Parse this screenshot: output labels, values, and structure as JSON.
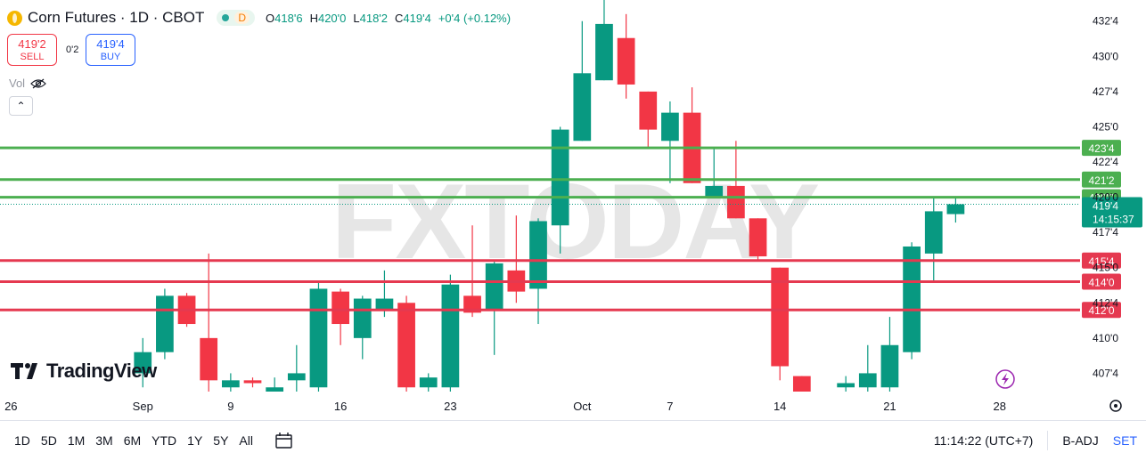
{
  "header": {
    "symbol": "Corn Futures · 1D · CBOT",
    "interval_badge": "D",
    "open_label": "O",
    "open": "418'6",
    "high_label": "H",
    "high": "420'0",
    "low_label": "L",
    "low": "418'2",
    "close_label": "C",
    "close": "419'4",
    "change": "+0'4 (+0.12%)"
  },
  "trade": {
    "sell_price": "419'2",
    "sell_label": "SELL",
    "spread": "0'2",
    "buy_price": "419'4",
    "buy_label": "BUY"
  },
  "volume_label": "Vol",
  "watermark": "FXTODAY",
  "brand": "TradingView",
  "bottom": {
    "ranges": [
      "1D",
      "5D",
      "1M",
      "3M",
      "6M",
      "YTD",
      "1Y",
      "5Y",
      "All"
    ],
    "clock": "11:14:22 (UTC+7)",
    "adj": "B-ADJ",
    "set": "SET"
  },
  "colors": {
    "up": "#089981",
    "down": "#f23645",
    "resistance": "#4caf50",
    "support": "#e53950"
  },
  "chart_data": {
    "type": "candlestick",
    "title": "Corn Futures · 1D · CBOT",
    "y_ticks": [
      407.5,
      410.0,
      412.5,
      415.0,
      417.5,
      420.0,
      422.5,
      425.0,
      427.5,
      430.0,
      432.5
    ],
    "y_tick_labels": [
      "407'4",
      "410'0",
      "412'4",
      "415'0",
      "417'4",
      "420'0",
      "422'4",
      "425'0",
      "427'4",
      "430'0",
      "432'4"
    ],
    "ylim": [
      406.2,
      434.0
    ],
    "x_tick_labels": [
      "26",
      "Sep",
      "9",
      "16",
      "23",
      "Oct",
      "7",
      "14",
      "21",
      "28"
    ],
    "x_tick_slots": [
      -1,
      5,
      9,
      14,
      19,
      25,
      29,
      34,
      39,
      44
    ],
    "xlim": [
      -1.5,
      47.5
    ],
    "horizontal_lines": [
      {
        "value": 423.5,
        "label": "423'4",
        "kind": "resistance"
      },
      {
        "value": 421.25,
        "label": "421'2",
        "kind": "resistance"
      },
      {
        "value": 420.0,
        "label": "420'0",
        "kind": "resistance"
      },
      {
        "value": 415.5,
        "label": "415'4",
        "kind": "support"
      },
      {
        "value": 414.0,
        "label": "414'0",
        "kind": "support"
      },
      {
        "value": 412.0,
        "label": "412'0",
        "kind": "support"
      }
    ],
    "last_price": {
      "value": 419.5,
      "label": "419'4",
      "countdown": "14:15:37"
    },
    "candles": [
      {
        "slot": 5,
        "o": 407.5,
        "h": 410.0,
        "l": 406.5,
        "c": 409.0
      },
      {
        "slot": 6,
        "o": 409.0,
        "h": 413.5,
        "l": 408.5,
        "c": 413.0
      },
      {
        "slot": 7,
        "o": 413.0,
        "h": 413.2,
        "l": 410.8,
        "c": 411.0
      },
      {
        "slot": 8,
        "o": 410.0,
        "h": 416.0,
        "l": 406.0,
        "c": 407.0
      },
      {
        "slot": 9,
        "o": 406.5,
        "h": 407.5,
        "l": 406.0,
        "c": 407.0
      },
      {
        "slot": 10,
        "o": 407.0,
        "h": 407.2,
        "l": 406.5,
        "c": 406.8
      },
      {
        "slot": 11,
        "o": 406.0,
        "h": 407.2,
        "l": 406.0,
        "c": 406.5
      },
      {
        "slot": 12,
        "o": 407.0,
        "h": 409.5,
        "l": 406.0,
        "c": 407.5
      },
      {
        "slot": 13,
        "o": 406.5,
        "h": 414.0,
        "l": 406.0,
        "c": 413.5
      },
      {
        "slot": 14,
        "o": 413.3,
        "h": 413.5,
        "l": 409.5,
        "c": 411.0
      },
      {
        "slot": 15,
        "o": 410.0,
        "h": 413.0,
        "l": 408.5,
        "c": 412.8
      },
      {
        "slot": 16,
        "o": 412.0,
        "h": 414.8,
        "l": 411.5,
        "c": 412.8
      },
      {
        "slot": 17,
        "o": 412.5,
        "h": 413.0,
        "l": 406.0,
        "c": 406.5
      },
      {
        "slot": 18,
        "o": 406.5,
        "h": 407.5,
        "l": 406.0,
        "c": 407.2
      },
      {
        "slot": 19,
        "o": 406.5,
        "h": 414.5,
        "l": 406.0,
        "c": 413.8
      },
      {
        "slot": 20,
        "o": 413.0,
        "h": 418.0,
        "l": 411.5,
        "c": 411.8
      },
      {
        "slot": 21,
        "o": 412.0,
        "h": 415.5,
        "l": 408.8,
        "c": 415.3
      },
      {
        "slot": 22,
        "o": 414.8,
        "h": 418.7,
        "l": 412.5,
        "c": 413.3
      },
      {
        "slot": 23,
        "o": 413.5,
        "h": 418.5,
        "l": 411.0,
        "c": 418.3
      },
      {
        "slot": 24,
        "o": 418.0,
        "h": 425.0,
        "l": 416.0,
        "c": 424.8
      },
      {
        "slot": 25,
        "o": 424.0,
        "h": 432.5,
        "l": 424.0,
        "c": 428.8
      },
      {
        "slot": 26,
        "o": 428.3,
        "h": 434.0,
        "l": 428.3,
        "c": 432.3
      },
      {
        "slot": 27,
        "o": 431.3,
        "h": 433.0,
        "l": 427.0,
        "c": 428.0
      },
      {
        "slot": 28,
        "o": 427.5,
        "h": 427.5,
        "l": 423.5,
        "c": 424.8
      },
      {
        "slot": 29,
        "o": 424.0,
        "h": 426.8,
        "l": 421.0,
        "c": 426.0
      },
      {
        "slot": 30,
        "o": 426.0,
        "h": 427.8,
        "l": 421.0,
        "c": 421.0
      },
      {
        "slot": 31,
        "o": 420.0,
        "h": 423.5,
        "l": 420.0,
        "c": 420.8
      },
      {
        "slot": 32,
        "o": 420.8,
        "h": 424.0,
        "l": 418.5,
        "c": 418.5
      },
      {
        "slot": 33,
        "o": 418.5,
        "h": 418.5,
        "l": 415.5,
        "c": 415.8
      },
      {
        "slot": 34,
        "o": 415.0,
        "h": 415.0,
        "l": 407.0,
        "c": 408.0
      },
      {
        "slot": 35,
        "o": 407.3,
        "h": 407.3,
        "l": 406.0,
        "c": 406.2
      },
      {
        "slot": 37,
        "o": 406.5,
        "h": 407.3,
        "l": 406.0,
        "c": 406.8
      },
      {
        "slot": 38,
        "o": 406.5,
        "h": 409.5,
        "l": 406.0,
        "c": 407.5
      },
      {
        "slot": 39,
        "o": 406.5,
        "h": 411.5,
        "l": 406.0,
        "c": 409.5
      },
      {
        "slot": 40,
        "o": 409.0,
        "h": 416.8,
        "l": 408.5,
        "c": 416.5
      },
      {
        "slot": 41,
        "o": 416.0,
        "h": 420.0,
        "l": 414.0,
        "c": 419.0
      },
      {
        "slot": 42,
        "o": 418.8,
        "h": 420.0,
        "l": 418.2,
        "c": 419.5
      }
    ]
  }
}
